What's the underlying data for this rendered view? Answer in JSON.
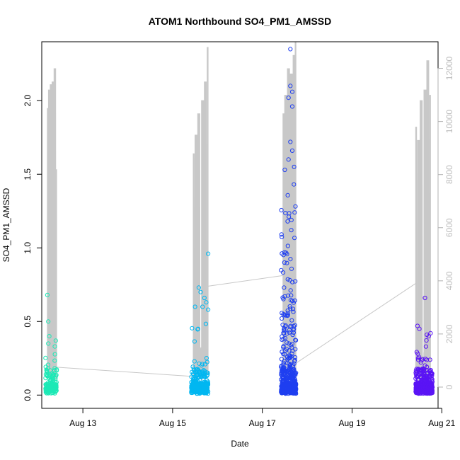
{
  "chart_data": {
    "type": "scatter",
    "title": "ATOM1 Northbound SO4_PM1_AMSSD",
    "xlabel": "Date",
    "ylabel": "SO4_PM1_AMSSD",
    "x_ticks": [
      "Aug 13",
      "Aug 15",
      "Aug 17",
      "Aug 19",
      "Aug 21"
    ],
    "y_ticks": [
      "0.0",
      "0.5",
      "1.0",
      "1.5",
      "2.0"
    ],
    "y2_ticks": [
      "0",
      "2000",
      "4000",
      "6000",
      "8000",
      "10000",
      "12000"
    ],
    "xlim": [
      "2016-08-12T02:00",
      "2016-08-20T22:00"
    ],
    "ylim": [
      -0.09,
      2.4
    ],
    "y2lim": [
      -800,
      13000
    ],
    "grid": false,
    "legend": "none",
    "secondary_series": {
      "kind": "line",
      "color": "#c8c8c8",
      "axis": "right",
      "values_note": "",
      "bursts": [
        {
          "x": [
            "2016-08-12T05:00",
            "2016-08-12T06:00",
            "2016-08-12T07:00",
            "2016-08-12T08:00",
            "2016-08-12T09:00",
            "2016-08-12T10:00"
          ],
          "peaks": [
            10500,
            11200,
            11400,
            11500,
            12000,
            8200
          ]
        },
        {
          "x": [
            "2016-08-15T11:00",
            "2016-08-15T12:30",
            "2016-08-15T14:00",
            "2016-08-15T16:00",
            "2016-08-15T17:30",
            "2016-08-15T19:00"
          ],
          "peaks": [
            8800,
            9500,
            10300,
            10800,
            11500,
            12800
          ]
        },
        {
          "x": [
            "2016-08-17T11:00",
            "2016-08-17T12:30",
            "2016-08-17T14:00",
            "2016-08-17T15:30",
            "2016-08-17T17:00",
            "2016-08-17T18:00"
          ],
          "peaks": [
            10300,
            11000,
            12000,
            11800,
            12500,
            13000
          ]
        },
        {
          "x": [
            "2016-08-20T10:00",
            "2016-08-20T11:30",
            "2016-08-20T13:00",
            "2016-08-20T15:00",
            "2016-08-20T16:30",
            "2016-08-20T18:00"
          ],
          "peaks": [
            9800,
            9300,
            10800,
            11200,
            12300,
            11000
          ]
        }
      ],
      "connectors": [
        {
          "from": [
            "2016-08-12T10:00",
            750
          ],
          "to": [
            "2016-08-15T11:00",
            400
          ]
        },
        {
          "from": [
            "2016-08-15T19:00",
            3800
          ],
          "to": [
            "2016-08-17T11:00",
            4200
          ]
        },
        {
          "from": [
            "2016-08-17T18:00",
            900
          ],
          "to": [
            "2016-08-20T10:00",
            3900
          ]
        }
      ]
    },
    "series": [
      {
        "color": "#1de9b6",
        "x_range": [
          "2016-08-12T04:00",
          "2016-08-12T10:00"
        ],
        "n": 160,
        "max": 0.68,
        "high_points": [
          [
            "2016-08-12T05:00",
            0.68
          ],
          [
            "2016-08-12T05:30",
            0.5
          ],
          [
            "2016-08-12T06:00",
            0.4
          ],
          [
            "2016-08-12T09:30",
            0.37
          ],
          [
            "2016-08-12T09:00",
            0.33
          ],
          [
            "2016-08-12T05:30",
            0.35
          ]
        ]
      },
      {
        "color": "#00b7f1",
        "x_range": [
          "2016-08-15T10:00",
          "2016-08-15T19:00"
        ],
        "n": 320,
        "max": 0.96,
        "high_points": [
          [
            "2016-08-15T19:00",
            0.96
          ],
          [
            "2016-08-15T14:00",
            0.73
          ],
          [
            "2016-08-15T15:00",
            0.7
          ],
          [
            "2016-08-15T17:00",
            0.66
          ],
          [
            "2016-08-15T18:00",
            0.63
          ],
          [
            "2016-08-15T16:00",
            0.6
          ],
          [
            "2016-08-15T12:00",
            0.6
          ],
          [
            "2016-08-15T19:00",
            0.58
          ]
        ]
      },
      {
        "color": "#1f3ff0",
        "x_range": [
          "2016-08-17T10:00",
          "2016-08-17T18:00"
        ],
        "n": 620,
        "max": 2.35,
        "high_points": [
          [
            "2016-08-17T15:00",
            2.35
          ],
          [
            "2016-08-17T15:00",
            2.1
          ],
          [
            "2016-08-17T16:00",
            2.06
          ],
          [
            "2016-08-17T14:00",
            2.02
          ],
          [
            "2016-08-17T16:00",
            1.96
          ],
          [
            "2016-08-17T15:00",
            1.72
          ],
          [
            "2016-08-17T16:00",
            1.66
          ],
          [
            "2016-08-17T14:00",
            1.6
          ],
          [
            "2016-08-17T12:00",
            1.53
          ],
          [
            "2016-08-17T17:00",
            1.55
          ]
        ]
      },
      {
        "color": "#5a14f5",
        "x_range": [
          "2016-08-20T10:00",
          "2016-08-20T19:00"
        ],
        "n": 520,
        "max": 0.66,
        "high_points": [
          [
            "2016-08-20T15:00",
            0.66
          ],
          [
            "2016-08-20T11:00",
            0.47
          ],
          [
            "2016-08-20T12:00",
            0.45
          ],
          [
            "2016-08-20T18:00",
            0.42
          ],
          [
            "2016-08-20T16:00",
            0.41
          ],
          [
            "2016-08-20T17:00",
            0.4
          ]
        ]
      }
    ]
  }
}
